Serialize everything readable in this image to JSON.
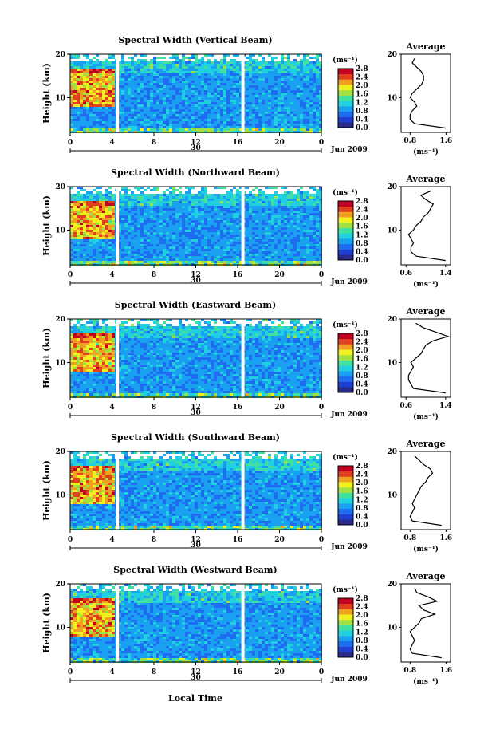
{
  "figure": {
    "xlabel": "Local Time",
    "date_label": "Jun 2009",
    "day_label": "30",
    "colorbar_unit": "(ms⁻¹)",
    "avg_title": "Average",
    "avg_xlabel": "(ms⁻¹)",
    "ylabel": "Height (km)"
  },
  "colors": {
    "scale": [
      "#2a2a8a",
      "#1f3fd0",
      "#1e6cf0",
      "#1aa0f0",
      "#20d0e0",
      "#40e0a0",
      "#a0e040",
      "#f0f020",
      "#f0a020",
      "#e04020",
      "#c00020"
    ],
    "gap": "#ffffff"
  },
  "chart_data": [
    {
      "type": "heatmap",
      "title": "Spectral Width (Vertical Beam)",
      "x_ticks": [
        "0",
        "4",
        "8",
        "12",
        "16",
        "20",
        "0"
      ],
      "xlim": [
        0,
        24
      ],
      "y_ticks": [
        "10",
        "20"
      ],
      "ylim": [
        2,
        20
      ],
      "colorbar_ticks": [
        "2.8",
        "2.4",
        "2.0",
        "1.6",
        "1.2",
        "0.8",
        "0.4",
        "0.0"
      ],
      "colorbar_range": [
        0.0,
        2.8
      ],
      "avg": {
        "x_ticks": [
          "0.8",
          "1.6"
        ],
        "xlim": [
          0.6,
          1.7
        ],
        "y_ticks": [
          "10",
          "20"
        ],
        "height": [
          3,
          4,
          5,
          6,
          7,
          8,
          9,
          10,
          11,
          12,
          13,
          14,
          15,
          16,
          17,
          18,
          19
        ],
        "width": [
          1.6,
          0.9,
          0.8,
          0.8,
          0.85,
          0.95,
          0.9,
          0.8,
          0.85,
          0.95,
          1.05,
          1.1,
          1.1,
          1.05,
          0.95,
          0.85,
          0.9
        ]
      }
    },
    {
      "type": "heatmap",
      "title": "Spectral Width (Northward Beam)",
      "x_ticks": [
        "0",
        "4",
        "8",
        "12",
        "16",
        "20",
        "0"
      ],
      "xlim": [
        0,
        24
      ],
      "y_ticks": [
        "10",
        "20"
      ],
      "ylim": [
        2,
        20
      ],
      "colorbar_ticks": [
        "2.8",
        "2.4",
        "2.0",
        "1.6",
        "1.2",
        "0.8",
        "0.4",
        "0.0"
      ],
      "colorbar_range": [
        0.0,
        2.8
      ],
      "avg": {
        "x_ticks": [
          "0.6",
          "1.4"
        ],
        "xlim": [
          0.5,
          1.5
        ],
        "y_ticks": [
          "10",
          "20"
        ],
        "height": [
          3,
          4,
          5,
          6,
          7,
          8,
          9,
          10,
          11,
          12,
          13,
          14,
          15,
          16,
          17,
          18,
          19
        ],
        "width": [
          1.4,
          0.8,
          0.7,
          0.7,
          0.75,
          0.7,
          0.65,
          0.75,
          0.8,
          0.9,
          0.95,
          1.05,
          1.1,
          1.15,
          1.0,
          0.9,
          1.1
        ]
      }
    },
    {
      "type": "heatmap",
      "title": "Spectral Width (Eastward Beam)",
      "x_ticks": [
        "0",
        "4",
        "8",
        "12",
        "16",
        "20",
        "0"
      ],
      "xlim": [
        0,
        24
      ],
      "y_ticks": [
        "10",
        "20"
      ],
      "ylim": [
        2,
        20
      ],
      "colorbar_ticks": [
        "2.8",
        "2.4",
        "2.0",
        "1.6",
        "1.2",
        "0.8",
        "0.4",
        "0.0"
      ],
      "colorbar_range": [
        0.0,
        2.8
      ],
      "avg": {
        "x_ticks": [
          "0.6",
          "1.4"
        ],
        "xlim": [
          0.5,
          1.5
        ],
        "y_ticks": [
          "10",
          "20"
        ],
        "height": [
          3,
          4,
          5,
          6,
          7,
          8,
          9,
          10,
          11,
          12,
          13,
          14,
          15,
          16,
          17,
          18,
          19
        ],
        "width": [
          1.4,
          0.75,
          0.7,
          0.65,
          0.65,
          0.7,
          0.75,
          0.7,
          0.8,
          0.9,
          0.95,
          1.0,
          1.15,
          1.45,
          1.2,
          0.95,
          0.8
        ]
      }
    },
    {
      "type": "heatmap",
      "title": "Spectral Width (Southward Beam)",
      "x_ticks": [
        "0",
        "4",
        "8",
        "12",
        "16",
        "20",
        "0"
      ],
      "xlim": [
        0,
        24
      ],
      "y_ticks": [
        "10",
        "20"
      ],
      "ylim": [
        2,
        20
      ],
      "colorbar_ticks": [
        "2.8",
        "2.4",
        "2.0",
        "1.6",
        "1.2",
        "0.8",
        "0.4",
        "0.0"
      ],
      "colorbar_range": [
        0.0,
        2.8
      ],
      "avg": {
        "x_ticks": [
          "0.8",
          "1.6"
        ],
        "xlim": [
          0.6,
          1.7
        ],
        "y_ticks": [
          "10",
          "20"
        ],
        "height": [
          3,
          4,
          5,
          6,
          7,
          8,
          9,
          10,
          11,
          12,
          13,
          14,
          15,
          16,
          17,
          18,
          19
        ],
        "width": [
          1.5,
          0.85,
          0.8,
          0.85,
          0.9,
          0.85,
          0.9,
          0.95,
          1.0,
          1.05,
          1.15,
          1.2,
          1.3,
          1.25,
          1.1,
          1.0,
          0.9
        ]
      }
    },
    {
      "type": "heatmap",
      "title": "Spectral Width (Westward Beam)",
      "x_ticks": [
        "0",
        "4",
        "8",
        "12",
        "16",
        "20",
        "0"
      ],
      "xlim": [
        0,
        24
      ],
      "y_ticks": [
        "10",
        "20"
      ],
      "ylim": [
        2,
        20
      ],
      "colorbar_ticks": [
        "2.8",
        "2.4",
        "2.0",
        "1.6",
        "1.2",
        "0.8",
        "0.4",
        "0.0"
      ],
      "colorbar_range": [
        0.0,
        2.8
      ],
      "avg": {
        "x_ticks": [
          "0.8",
          "1.6"
        ],
        "xlim": [
          0.6,
          1.7
        ],
        "y_ticks": [
          "10",
          "20"
        ],
        "height": [
          3,
          4,
          5,
          6,
          7,
          8,
          9,
          10,
          11,
          12,
          13,
          14,
          15,
          16,
          17,
          18,
          19
        ],
        "width": [
          1.5,
          0.85,
          0.8,
          0.85,
          0.9,
          0.85,
          0.8,
          0.9,
          1.0,
          1.05,
          1.35,
          1.1,
          1.0,
          1.4,
          1.2,
          0.95,
          0.9
        ]
      }
    }
  ]
}
